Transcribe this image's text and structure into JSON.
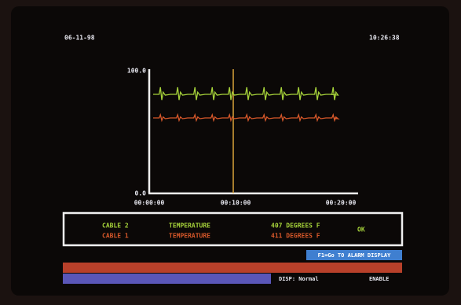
{
  "screen": {
    "date": "06-11-98",
    "time": "10:26:38",
    "graph": {
      "y_top": "100.0",
      "y_bottom": "0.0",
      "x_ticks": [
        "00:00:00",
        "00:10:00",
        "00:20:00"
      ]
    },
    "status_rows": [
      [
        "CABLE 2",
        "TEMPERATURE",
        "407 DEGREES F",
        "OK"
      ],
      [
        "CABLE 1",
        "TEMPERATURE",
        "411 DEGREES F"
      ]
    ],
    "alarm_button": "F1=Go TO ALARM DISPLAY",
    "disp": "DISP: Normal",
    "mode": "ENABLE"
  }
}
